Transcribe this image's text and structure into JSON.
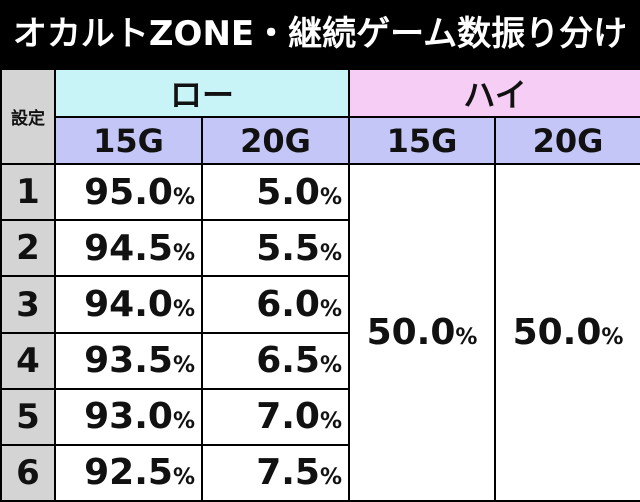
{
  "title": "オカルトZONE・継続ゲーム数振り分け",
  "header": {
    "setting_label": "設定",
    "low_label": "ロー",
    "high_label": "ハイ",
    "col_15g": "15G",
    "col_20g": "20G"
  },
  "percent_sign": "%",
  "rows": [
    {
      "setting": "1",
      "low_15g": "95.0",
      "low_20g": "5.0"
    },
    {
      "setting": "2",
      "low_15g": "94.5",
      "low_20g": "5.5"
    },
    {
      "setting": "3",
      "low_15g": "94.0",
      "low_20g": "6.0"
    },
    {
      "setting": "4",
      "low_15g": "93.5",
      "low_20g": "6.5"
    },
    {
      "setting": "5",
      "low_15g": "93.0",
      "low_20g": "7.0"
    },
    {
      "setting": "6",
      "low_15g": "92.5",
      "low_20g": "7.5"
    }
  ],
  "high": {
    "g15": "50.0",
    "g20": "50.0"
  },
  "colors": {
    "low_header": "#c8f4f8",
    "high_header": "#f6cdf4",
    "sub_header": "#c4c6f8",
    "setting_cells": "#d4d4d4"
  }
}
